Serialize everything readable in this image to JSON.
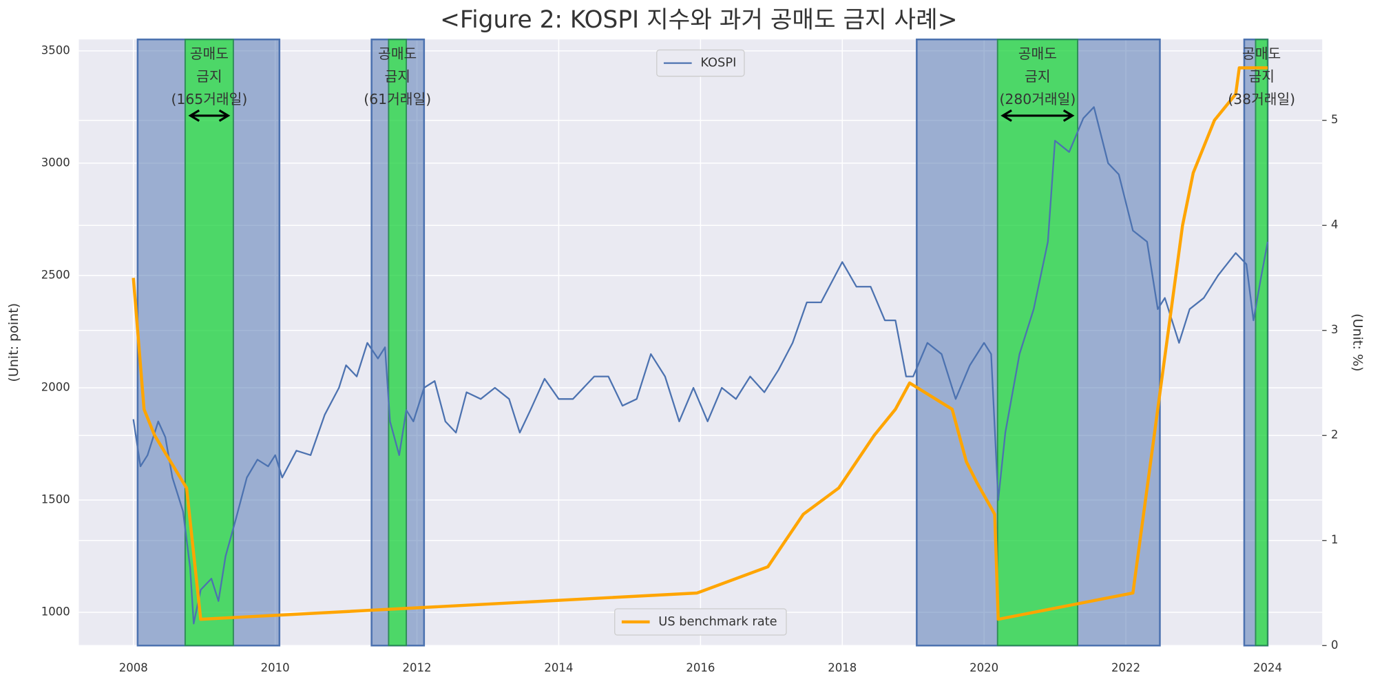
{
  "chart_data": {
    "type": "line",
    "title": "<Figure 2: KOSPI 지수와 과거 공매도 금지 사례>",
    "y_label": "(Unit: point)",
    "y2_label": "(Unit: %)",
    "xlim": [
      2007.23,
      2024.77
    ],
    "xticks": [
      2008,
      2010,
      2012,
      2014,
      2016,
      2018,
      2020,
      2022,
      2024
    ],
    "ylim": [
      852,
      3551
    ],
    "yticks": [
      1000,
      1500,
      2000,
      2500,
      3000,
      3500
    ],
    "y2lim": [
      0,
      5.77
    ],
    "y2ticks": [
      0,
      1,
      2,
      3,
      4,
      5
    ],
    "grid": true,
    "background": "#eaeaf2",
    "series": [
      {
        "name": "KOSPI",
        "color": "#4c72b0",
        "axis": "y",
        "legend": "upper center",
        "x": [
          2008.0,
          2008.1,
          2008.2,
          2008.35,
          2008.45,
          2008.55,
          2008.7,
          2008.8,
          2008.85,
          2008.95,
          2009.1,
          2009.2,
          2009.3,
          2009.45,
          2009.6,
          2009.75,
          2009.9,
          2010.0,
          2010.1,
          2010.3,
          2010.5,
          2010.7,
          2010.9,
          2011.0,
          2011.15,
          2011.3,
          2011.45,
          2011.55,
          2011.62,
          2011.75,
          2011.85,
          2011.95,
          2012.1,
          2012.25,
          2012.4,
          2012.55,
          2012.7,
          2012.9,
          2013.1,
          2013.3,
          2013.45,
          2013.6,
          2013.8,
          2014.0,
          2014.2,
          2014.5,
          2014.7,
          2014.9,
          2015.1,
          2015.3,
          2015.5,
          2015.7,
          2015.9,
          2016.1,
          2016.3,
          2016.5,
          2016.7,
          2016.9,
          2017.1,
          2017.3,
          2017.5,
          2017.7,
          2017.9,
          2018.0,
          2018.2,
          2018.4,
          2018.6,
          2018.75,
          2018.9,
          2019.0,
          2019.2,
          2019.4,
          2019.6,
          2019.8,
          2020.0,
          2020.1,
          2020.2,
          2020.3,
          2020.5,
          2020.7,
          2020.9,
          2021.0,
          2021.2,
          2021.4,
          2021.55,
          2021.75,
          2021.9,
          2022.1,
          2022.3,
          2022.45,
          2022.55,
          2022.75,
          2022.9,
          2023.1,
          2023.3,
          2023.55,
          2023.7,
          2023.8,
          2023.9,
          2024.0
        ],
        "values": [
          1860,
          1650,
          1700,
          1850,
          1780,
          1600,
          1450,
          1200,
          950,
          1100,
          1150,
          1050,
          1250,
          1420,
          1600,
          1680,
          1650,
          1700,
          1600,
          1720,
          1700,
          1880,
          2000,
          2100,
          2050,
          2200,
          2130,
          2180,
          1850,
          1700,
          1900,
          1850,
          2000,
          2030,
          1850,
          1800,
          1980,
          1950,
          2000,
          1950,
          1800,
          1900,
          2040,
          1950,
          1950,
          2050,
          2050,
          1920,
          1950,
          2150,
          2050,
          1850,
          2000,
          1850,
          2000,
          1950,
          2050,
          1980,
          2080,
          2200,
          2380,
          2380,
          2500,
          2560,
          2450,
          2450,
          2300,
          2300,
          2050,
          2050,
          2200,
          2150,
          1950,
          2100,
          2200,
          2150,
          1500,
          1800,
          2150,
          2350,
          2650,
          3100,
          3050,
          3200,
          3250,
          3000,
          2950,
          2700,
          2650,
          2350,
          2400,
          2200,
          2350,
          2400,
          2500,
          2600,
          2550,
          2300,
          2480,
          2650
        ]
      },
      {
        "name": "US benchmark rate",
        "color": "#ffa500",
        "axis": "y2",
        "legend": "lower center",
        "x": [
          2008.0,
          2008.15,
          2008.3,
          2008.75,
          2008.95,
          2015.95,
          2016.95,
          2017.2,
          2017.45,
          2017.95,
          2018.2,
          2018.45,
          2018.75,
          2018.95,
          2019.55,
          2019.75,
          2019.9,
          2020.15,
          2020.2,
          2022.1,
          2022.2,
          2022.35,
          2022.5,
          2022.65,
          2022.8,
          2022.95,
          2023.1,
          2023.25,
          2023.55,
          2023.6,
          2024.0
        ],
        "values": [
          3.5,
          2.25,
          2.0,
          1.5,
          0.25,
          0.5,
          0.75,
          1.0,
          1.25,
          1.5,
          1.75,
          2.0,
          2.25,
          2.5,
          2.25,
          1.75,
          1.55,
          1.25,
          0.25,
          0.5,
          1.0,
          1.75,
          2.5,
          3.25,
          4.0,
          4.5,
          4.75,
          5.0,
          5.25,
          5.5,
          5.5
        ]
      }
    ],
    "shaded_periods": [
      {
        "start": 2008.06,
        "end": 2010.06,
        "color": "#4c72b0"
      },
      {
        "start": 2011.36,
        "end": 2012.1,
        "color": "#4c72b0"
      },
      {
        "start": 2019.05,
        "end": 2022.48,
        "color": "#4c72b0"
      },
      {
        "start": 2023.67,
        "end": 2024.0,
        "color": "#4c72b0"
      }
    ],
    "ban_periods": [
      {
        "start": 2008.73,
        "end": 2009.41,
        "color": "#00ff00",
        "arrow": true,
        "label": [
          "공매도",
          "금지",
          "(165거래일)"
        ]
      },
      {
        "start": 2011.6,
        "end": 2011.85,
        "color": "#00ff00",
        "arrow": false,
        "label": [
          "공매도",
          "금지",
          "(61거래일)"
        ]
      },
      {
        "start": 2020.19,
        "end": 2021.32,
        "color": "#00ff00",
        "arrow": true,
        "label": [
          "공매도",
          "금지",
          "(280거래일)"
        ]
      },
      {
        "start": 2023.83,
        "end": 2024.0,
        "color": "#00ff00",
        "arrow": false,
        "label": [
          "공매도",
          "금지",
          "(38거래일)"
        ]
      }
    ]
  }
}
